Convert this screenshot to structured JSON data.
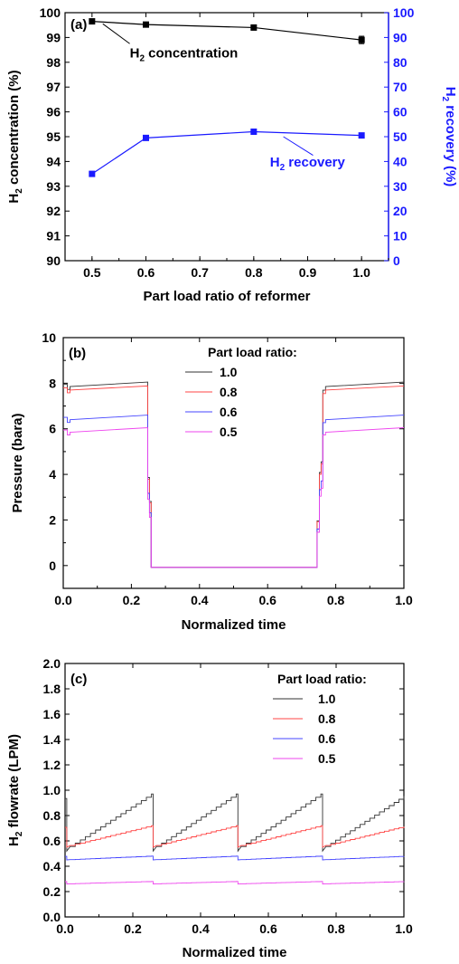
{
  "chart_data": [
    {
      "type": "line",
      "panel_label": "(a)",
      "xlabel": "Part load ratio of reformer",
      "ylabel": "H2 concentration (%)",
      "ylabel_right": "H2 recovery (%)",
      "xlim": [
        0.45,
        1.05
      ],
      "ylim": [
        90,
        100
      ],
      "ylim_right": [
        0,
        100
      ],
      "xticks": [
        "0.5",
        "0.6",
        "0.7",
        "0.8",
        "0.9",
        "1.0"
      ],
      "yticks": [
        "90",
        "91",
        "92",
        "93",
        "94",
        "95",
        "96",
        "97",
        "98",
        "99",
        "100"
      ],
      "yticks_right": [
        "0",
        "10",
        "20",
        "30",
        "40",
        "50",
        "60",
        "70",
        "80",
        "90",
        "100"
      ],
      "x": [
        0.5,
        0.6,
        0.8,
        1.0
      ],
      "series": [
        {
          "name": "H2 concentration",
          "axis": "left",
          "color": "#000000",
          "values": [
            99.65,
            99.52,
            99.4,
            98.9
          ],
          "errors": [
            0.06,
            0.05,
            0.05,
            0.15
          ]
        },
        {
          "name": "H2 recovery",
          "axis": "right",
          "color": "#1a1aff",
          "values": [
            35,
            49.5,
            52,
            50.5
          ]
        }
      ]
    },
    {
      "type": "line",
      "panel_label": "(b)",
      "xlabel": "Normalized time",
      "ylabel": "Pressure (bara)",
      "xlim": [
        0,
        1
      ],
      "ylim": [
        -1,
        10
      ],
      "xticks": [
        "0.0",
        "0.2",
        "0.4",
        "0.6",
        "0.8",
        "1.0"
      ],
      "yticks": [
        "0",
        "2",
        "4",
        "6",
        "8",
        "10"
      ],
      "legend_title": "Part load ratio:",
      "legend_position": "top-center",
      "series": [
        {
          "name": "1.0",
          "color": "#333333",
          "high_start": 7.85,
          "high_end": 8.05
        },
        {
          "name": "0.8",
          "color": "#ff4444",
          "high_start": 7.7,
          "high_end": 7.88
        },
        {
          "name": "0.6",
          "color": "#4444ff",
          "high_start": 6.4,
          "high_end": 6.6
        },
        {
          "name": "0.5",
          "color": "#ee44ee",
          "high_start": 5.85,
          "high_end": 6.05
        }
      ],
      "low_value": -0.08
    },
    {
      "type": "line",
      "panel_label": "(c)",
      "xlabel": "Normalized time",
      "ylabel": "H2 flowrate (LPM)",
      "xlim": [
        0,
        1
      ],
      "ylim": [
        0,
        2.0
      ],
      "xticks": [
        "0.0",
        "0.2",
        "0.4",
        "0.6",
        "0.8",
        "1.0"
      ],
      "yticks": [
        "0.0",
        "0.2",
        "0.4",
        "0.6",
        "0.8",
        "1.0",
        "1.2",
        "1.4",
        "1.6",
        "1.8",
        "2.0"
      ],
      "legend_title": "Part load ratio:",
      "legend_position": "top-right",
      "series": [
        {
          "name": "1.0",
          "color": "#333333",
          "cycle_low": 0.52,
          "cycle_high": 0.97
        },
        {
          "name": "0.8",
          "color": "#ff4444",
          "cycle_low": 0.55,
          "cycle_high": 0.72
        },
        {
          "name": "0.6",
          "color": "#4444ff",
          "cycle_low": 0.45,
          "cycle_high": 0.48
        },
        {
          "name": "0.5",
          "color": "#ee44ee",
          "cycle_low": 0.26,
          "cycle_high": 0.28
        }
      ]
    }
  ]
}
